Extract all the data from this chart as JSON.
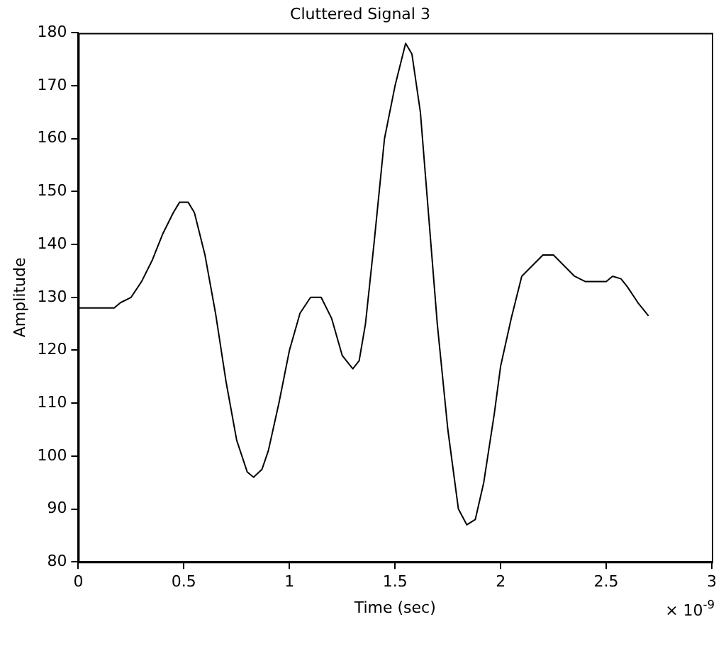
{
  "chart_data": {
    "type": "line",
    "title": "Cluttered Signal 3",
    "xlabel": "Time (sec)",
    "ylabel": "Amplitude",
    "annotations": [
      "× 10$^{-9}$"
    ],
    "xlim": [
      0,
      3
    ],
    "xticks": [
      0,
      0.5,
      1,
      1.5,
      2,
      2.5,
      3
    ],
    "ylim": [
      80,
      180
    ],
    "yticks": [
      80,
      90,
      100,
      110,
      120,
      130,
      140,
      150,
      160,
      170,
      180
    ],
    "grid": false,
    "marker": "none",
    "line_style": "solid",
    "series": [
      {
        "color": "#000000",
        "x": [
          0,
          0.17,
          0.2,
          0.25,
          0.3,
          0.35,
          0.4,
          0.45,
          0.48,
          0.52,
          0.55,
          0.6,
          0.65,
          0.7,
          0.75,
          0.8,
          0.83,
          0.87,
          0.9,
          0.95,
          1.0,
          1.05,
          1.1,
          1.15,
          1.2,
          1.25,
          1.3,
          1.33,
          1.36,
          1.4,
          1.45,
          1.5,
          1.55,
          1.58,
          1.62,
          1.66,
          1.7,
          1.75,
          1.8,
          1.84,
          1.88,
          1.92,
          1.97,
          2.0,
          2.05,
          2.1,
          2.15,
          2.2,
          2.25,
          2.3,
          2.35,
          2.4,
          2.45,
          2.5,
          2.53,
          2.57,
          2.6,
          2.65,
          2.7
        ],
        "values": [
          128,
          128,
          129,
          130,
          133,
          137,
          142,
          146,
          148,
          148,
          146,
          138,
          127,
          114,
          103,
          97,
          96,
          97.5,
          101,
          110,
          120,
          127,
          130,
          130,
          126,
          119,
          116.5,
          118,
          125,
          140,
          160,
          170,
          178,
          176,
          165,
          145,
          125,
          105,
          90,
          87,
          88,
          95,
          108,
          117,
          126,
          134,
          136,
          138,
          138,
          136,
          134,
          133,
          133,
          133,
          134,
          133.5,
          132,
          129,
          126.5
        ]
      }
    ]
  }
}
